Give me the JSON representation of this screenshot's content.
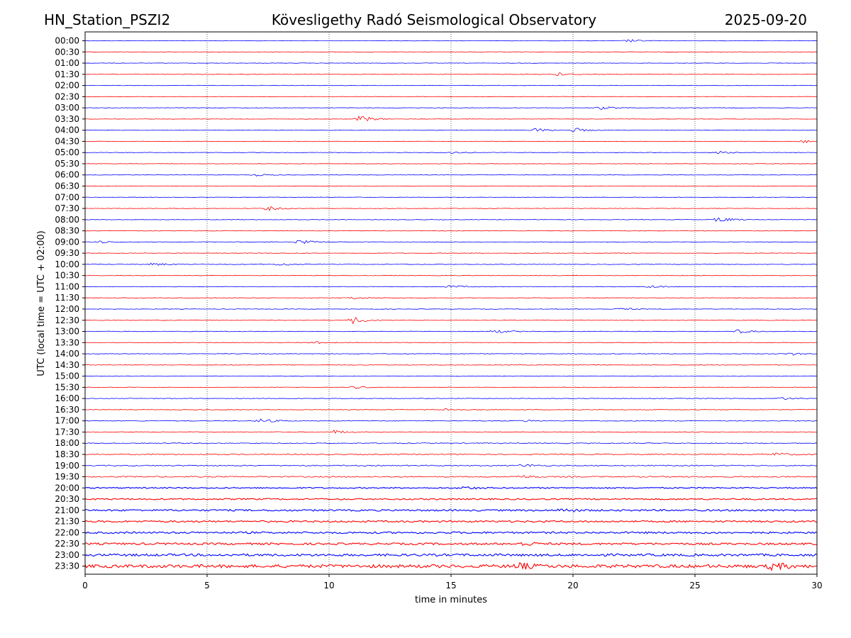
{
  "header": {
    "station": "HN_Station_PSZI2",
    "observatory": "Kövesligethy Radó Seismological Observatory",
    "date": "2025-09-20"
  },
  "chart_data": {
    "type": "helicorder",
    "xlabel": "time in minutes",
    "ylabel": "UTC (local time = UTC + 02:00)",
    "xlim": [
      0,
      30
    ],
    "xticks": [
      "0",
      "5",
      "10",
      "15",
      "20",
      "25",
      "30"
    ],
    "grid": "vertical dotted at 5-minute intervals",
    "line_colors": [
      "#0000ff",
      "#ff0000"
    ],
    "row_labels": [
      "00:00",
      "00:30",
      "01:00",
      "01:30",
      "02:00",
      "02:30",
      "03:00",
      "03:30",
      "04:00",
      "04:30",
      "05:00",
      "05:30",
      "06:00",
      "06:30",
      "07:00",
      "07:30",
      "08:00",
      "08:30",
      "09:00",
      "09:30",
      "10:00",
      "10:30",
      "11:00",
      "11:30",
      "12:00",
      "12:30",
      "13:00",
      "13:30",
      "14:00",
      "14:30",
      "15:00",
      "15:30",
      "16:00",
      "16:30",
      "17:00",
      "17:30",
      "18:00",
      "18:30",
      "19:00",
      "19:30",
      "20:00",
      "20:30",
      "21:00",
      "21:30",
      "22:00",
      "22:30",
      "23:00",
      "23:30"
    ],
    "noise_level": [
      0.3,
      0.3,
      0.3,
      0.3,
      0.3,
      0.3,
      0.3,
      0.3,
      0.3,
      0.3,
      0.35,
      0.3,
      0.3,
      0.3,
      0.3,
      0.35,
      0.35,
      0.35,
      0.4,
      0.35,
      0.4,
      0.35,
      0.35,
      0.35,
      0.35,
      0.35,
      0.4,
      0.35,
      0.4,
      0.35,
      0.35,
      0.35,
      0.4,
      0.45,
      0.5,
      0.5,
      0.6,
      0.7,
      0.7,
      0.8,
      0.9,
      1.0,
      1.2,
      1.2,
      1.3,
      1.4,
      1.6,
      2.2
    ],
    "events": [
      {
        "row": "00:00",
        "t": 22.3,
        "amp": 2
      },
      {
        "row": "01:30",
        "t": 19.3,
        "amp": 3
      },
      {
        "row": "03:00",
        "t": 21.2,
        "amp": 2.5
      },
      {
        "row": "03:30",
        "t": 11.3,
        "amp": 5
      },
      {
        "row": "04:00",
        "t": 18.5,
        "amp": 3
      },
      {
        "row": "04:00",
        "t": 20.1,
        "amp": 3
      },
      {
        "row": "04:30",
        "t": 29.5,
        "amp": 2
      },
      {
        "row": "05:00",
        "t": 15.0,
        "amp": 1.5
      },
      {
        "row": "05:00",
        "t": 26.0,
        "amp": 1.5
      },
      {
        "row": "06:00",
        "t": 7.0,
        "amp": 1.5
      },
      {
        "row": "07:30",
        "t": 7.5,
        "amp": 3
      },
      {
        "row": "08:00",
        "t": 26.0,
        "amp": 4
      },
      {
        "row": "09:00",
        "t": 8.8,
        "amp": 3
      },
      {
        "row": "09:00",
        "t": 0.5,
        "amp": 2
      },
      {
        "row": "10:00",
        "t": 2.8,
        "amp": 2
      },
      {
        "row": "10:00",
        "t": 8.0,
        "amp": 2
      },
      {
        "row": "11:00",
        "t": 15.0,
        "amp": 2
      },
      {
        "row": "11:00",
        "t": 23.2,
        "amp": 2
      },
      {
        "row": "11:30",
        "t": 11.0,
        "amp": 2
      },
      {
        "row": "12:00",
        "t": 22.0,
        "amp": 2
      },
      {
        "row": "12:30",
        "t": 11.0,
        "amp": 5
      },
      {
        "row": "13:00",
        "t": 16.8,
        "amp": 2.5
      },
      {
        "row": "13:00",
        "t": 26.8,
        "amp": 2.5
      },
      {
        "row": "13:30",
        "t": 9.5,
        "amp": 1.5
      },
      {
        "row": "14:00",
        "t": 29.0,
        "amp": 2
      },
      {
        "row": "15:30",
        "t": 11.0,
        "amp": 2
      },
      {
        "row": "16:00",
        "t": 28.5,
        "amp": 2
      },
      {
        "row": "16:30",
        "t": 14.9,
        "amp": 2.5
      },
      {
        "row": "17:00",
        "t": 7.2,
        "amp": 3
      },
      {
        "row": "17:00",
        "t": 18.0,
        "amp": 1.5
      },
      {
        "row": "17:30",
        "t": 10.2,
        "amp": 2.5
      },
      {
        "row": "18:30",
        "t": 28.3,
        "amp": 2.5
      },
      {
        "row": "19:00",
        "t": 18.0,
        "amp": 2
      },
      {
        "row": "19:30",
        "t": 17.8,
        "amp": 2
      },
      {
        "row": "20:00",
        "t": 15.5,
        "amp": 2
      },
      {
        "row": "21:00",
        "t": 19.6,
        "amp": 2.5
      },
      {
        "row": "22:30",
        "t": 18.0,
        "amp": 2.5
      },
      {
        "row": "23:30",
        "t": 17.8,
        "amp": 4
      },
      {
        "row": "23:30",
        "t": 28.2,
        "amp": 5
      }
    ]
  }
}
